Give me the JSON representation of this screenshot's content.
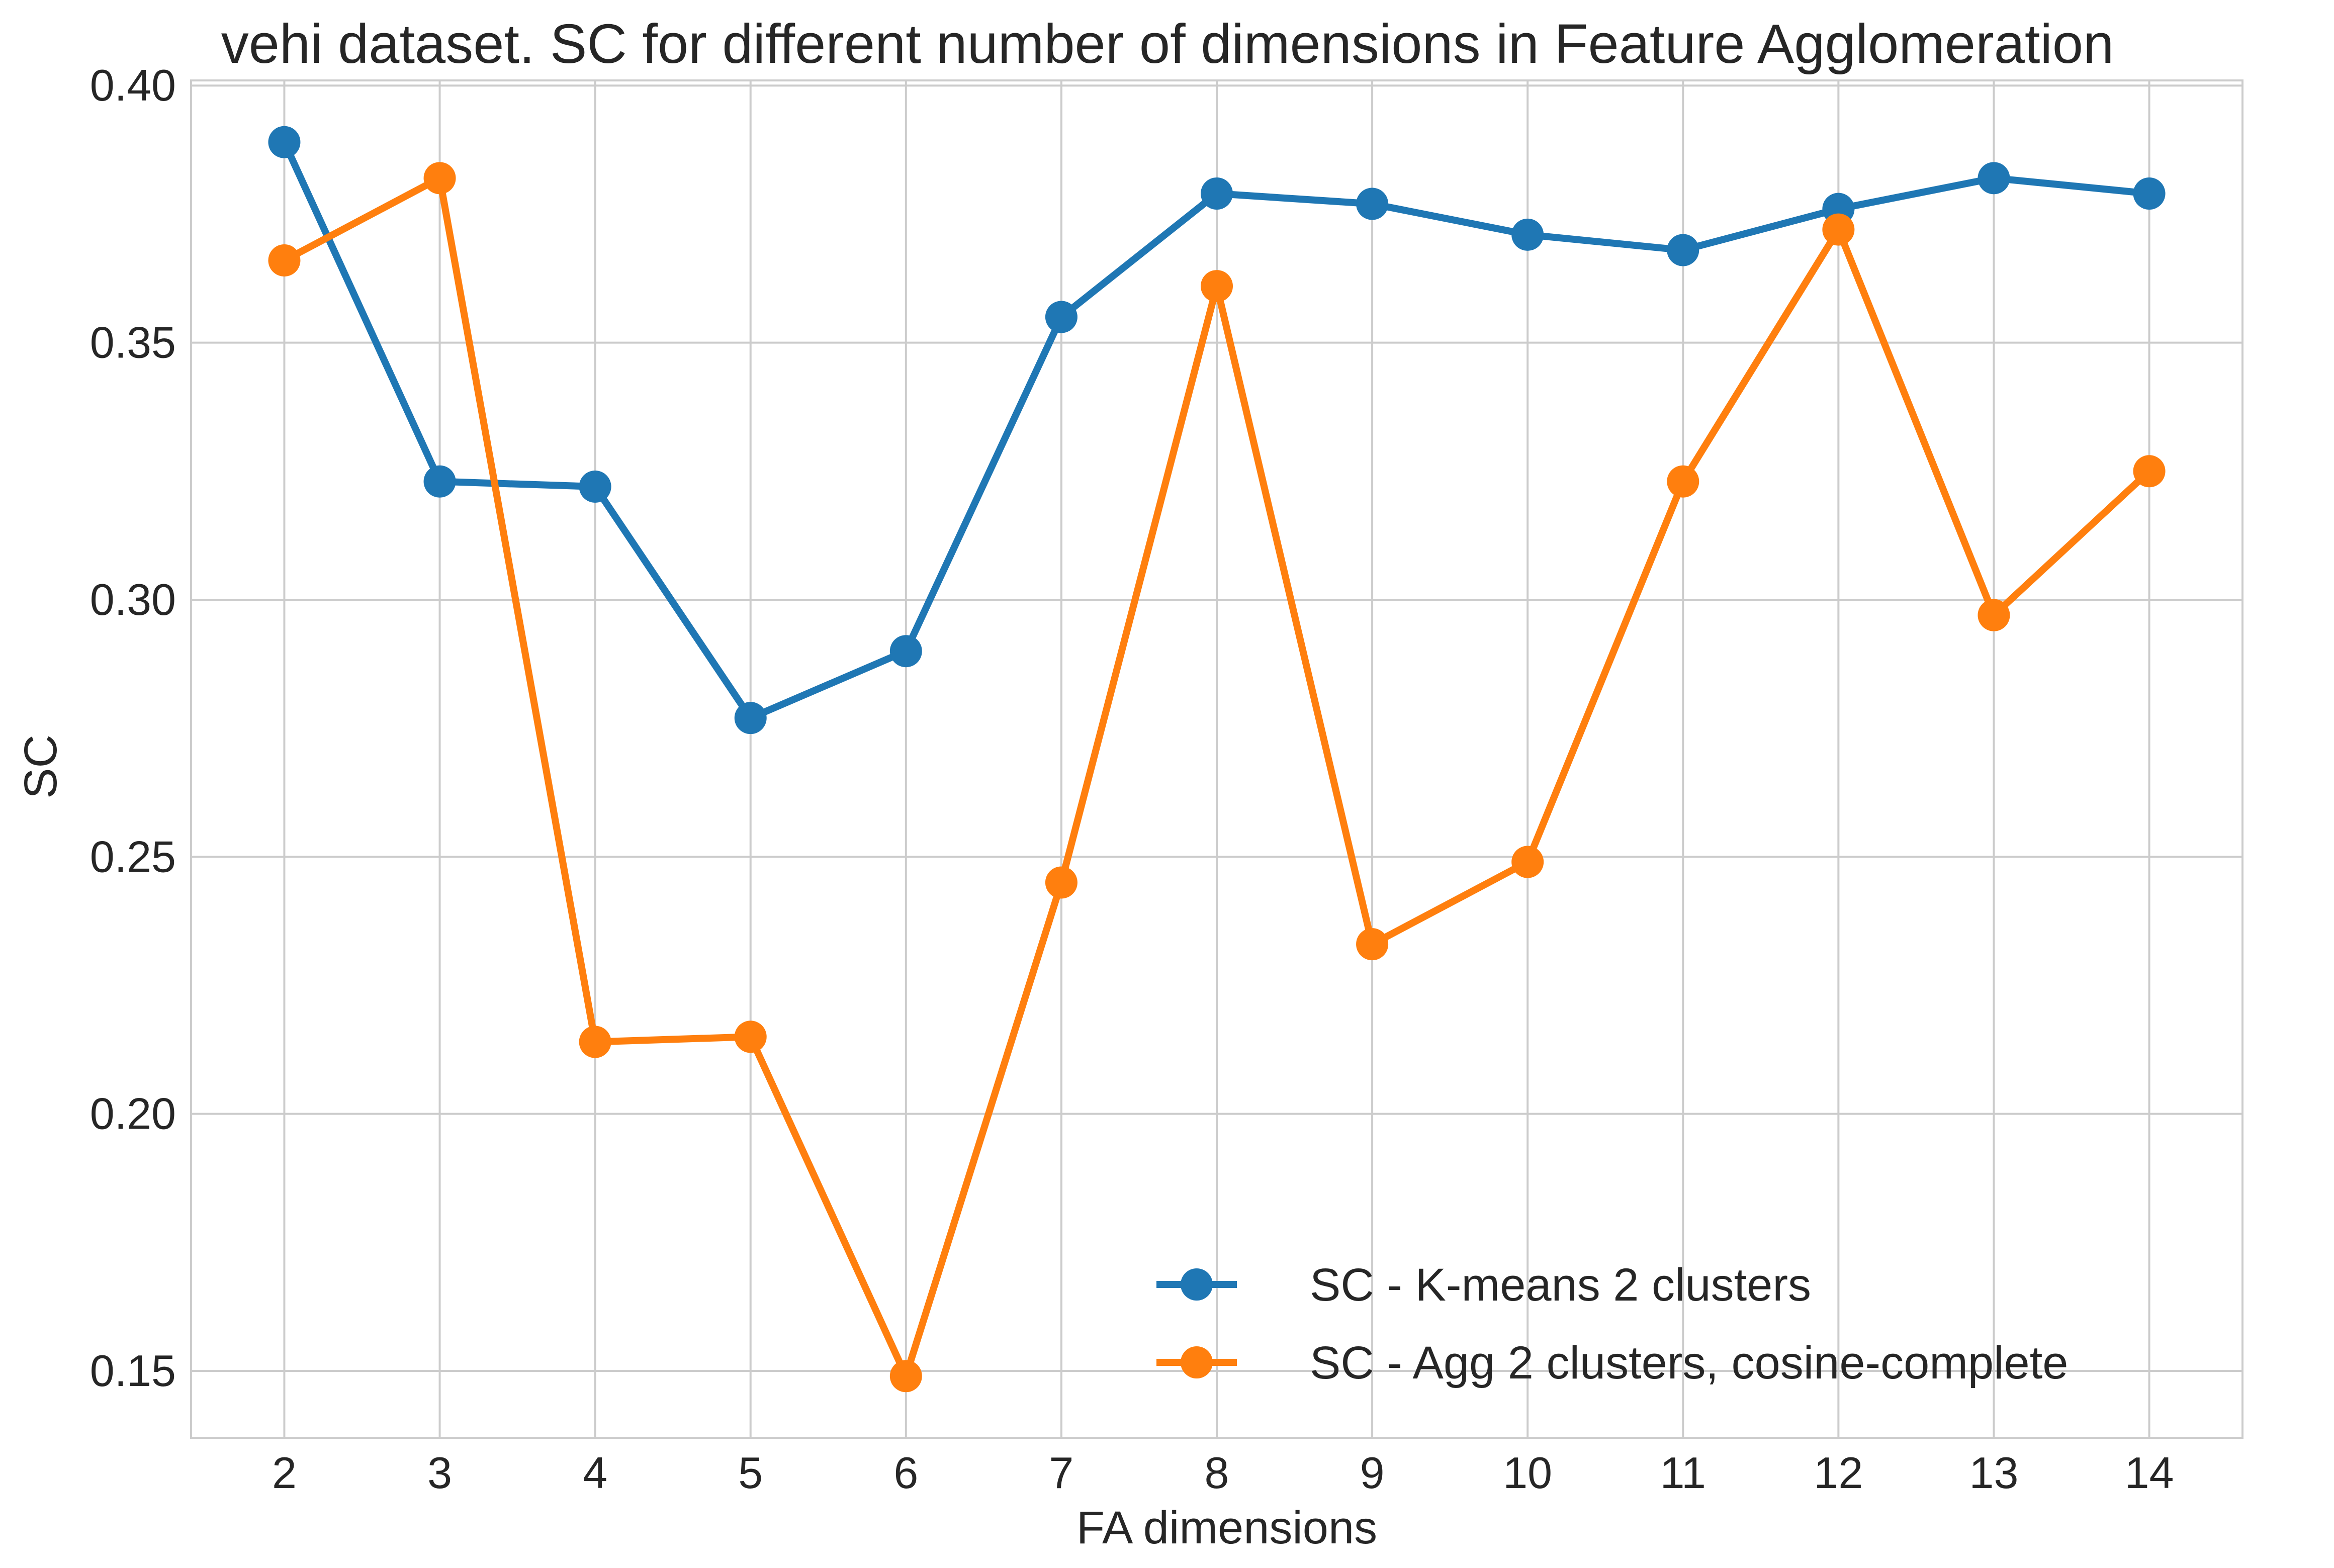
{
  "chart_data": {
    "type": "line",
    "title": "vehi dataset. SC for different number of dimensions in Feature Agglomeration",
    "xlabel": "FA dimensions",
    "ylabel": "SC",
    "x": [
      2,
      3,
      4,
      5,
      6,
      7,
      8,
      9,
      10,
      11,
      12,
      13,
      14
    ],
    "x_tick_labels": [
      "2",
      "3",
      "4",
      "5",
      "6",
      "7",
      "8",
      "9",
      "10",
      "11",
      "12",
      "13",
      "14"
    ],
    "y_ticks": [
      0.15,
      0.2,
      0.25,
      0.3,
      0.35,
      0.4
    ],
    "y_tick_labels": [
      "0.15",
      "0.20",
      "0.25",
      "0.30",
      "0.35",
      "0.40"
    ],
    "xlim": [
      1.4,
      14.6
    ],
    "ylim": [
      0.137,
      0.401
    ],
    "grid": true,
    "legend_position": "bottom-right",
    "series": [
      {
        "name": "SC - K-means 2 clusters",
        "color": "#1f77b4",
        "values": [
          0.389,
          0.323,
          0.322,
          0.277,
          0.29,
          0.355,
          0.379,
          0.377,
          0.371,
          0.368,
          0.376,
          0.382,
          0.379
        ]
      },
      {
        "name": "SC - Agg 2 clusters, cosine-complete",
        "color": "#ff7f0e",
        "values": [
          0.366,
          0.382,
          0.214,
          0.215,
          0.149,
          0.245,
          0.361,
          0.233,
          0.249,
          0.323,
          0.372,
          0.297,
          0.325
        ]
      }
    ]
  }
}
